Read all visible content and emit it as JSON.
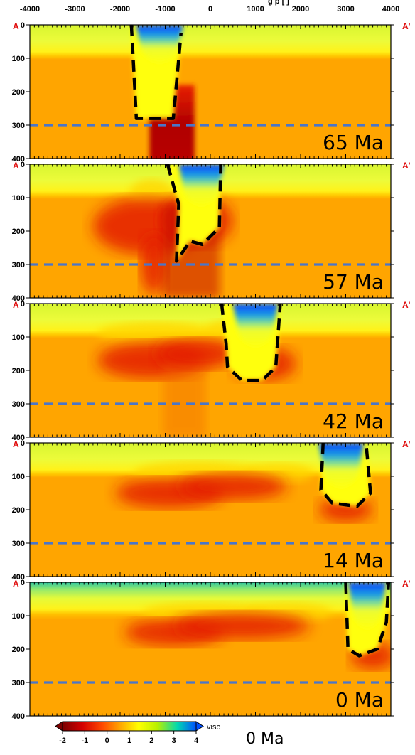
{
  "figure": {
    "top_axis_title": "g p [ ]",
    "x_ticks": [
      "-4000",
      "-3000",
      "-2000",
      "-1000",
      "0",
      "1000",
      "2000",
      "3000",
      "4000"
    ],
    "y_ticks": [
      "0",
      "100",
      "200",
      "300",
      "400"
    ],
    "section_start": "A",
    "section_end": "A'",
    "reference_depth_line_km": 300,
    "panels": [
      {
        "age": "65 Ma"
      },
      {
        "age": "57 Ma"
      },
      {
        "age": "42 Ma"
      },
      {
        "age": "14 Ma"
      },
      {
        "age": "0 Ma"
      }
    ],
    "colorbar": {
      "label": "visc",
      "ticks": [
        "-2",
        "-1",
        "0",
        "1",
        "2",
        "3",
        "4"
      ],
      "colors": [
        "#7a0000",
        "#d40000",
        "#ff4a00",
        "#ffa500",
        "#ffff00",
        "#b8f000",
        "#00d8b0",
        "#0050ff"
      ]
    },
    "bottom_label": "0 Ma",
    "colors": {
      "mantle": "#ffa500",
      "lithosphere": "#ffff00",
      "cold_root": "#0050ff",
      "hot_anomaly": "#dd1500",
      "reference_line": "#4a76c9",
      "outline": "#000000"
    }
  }
}
